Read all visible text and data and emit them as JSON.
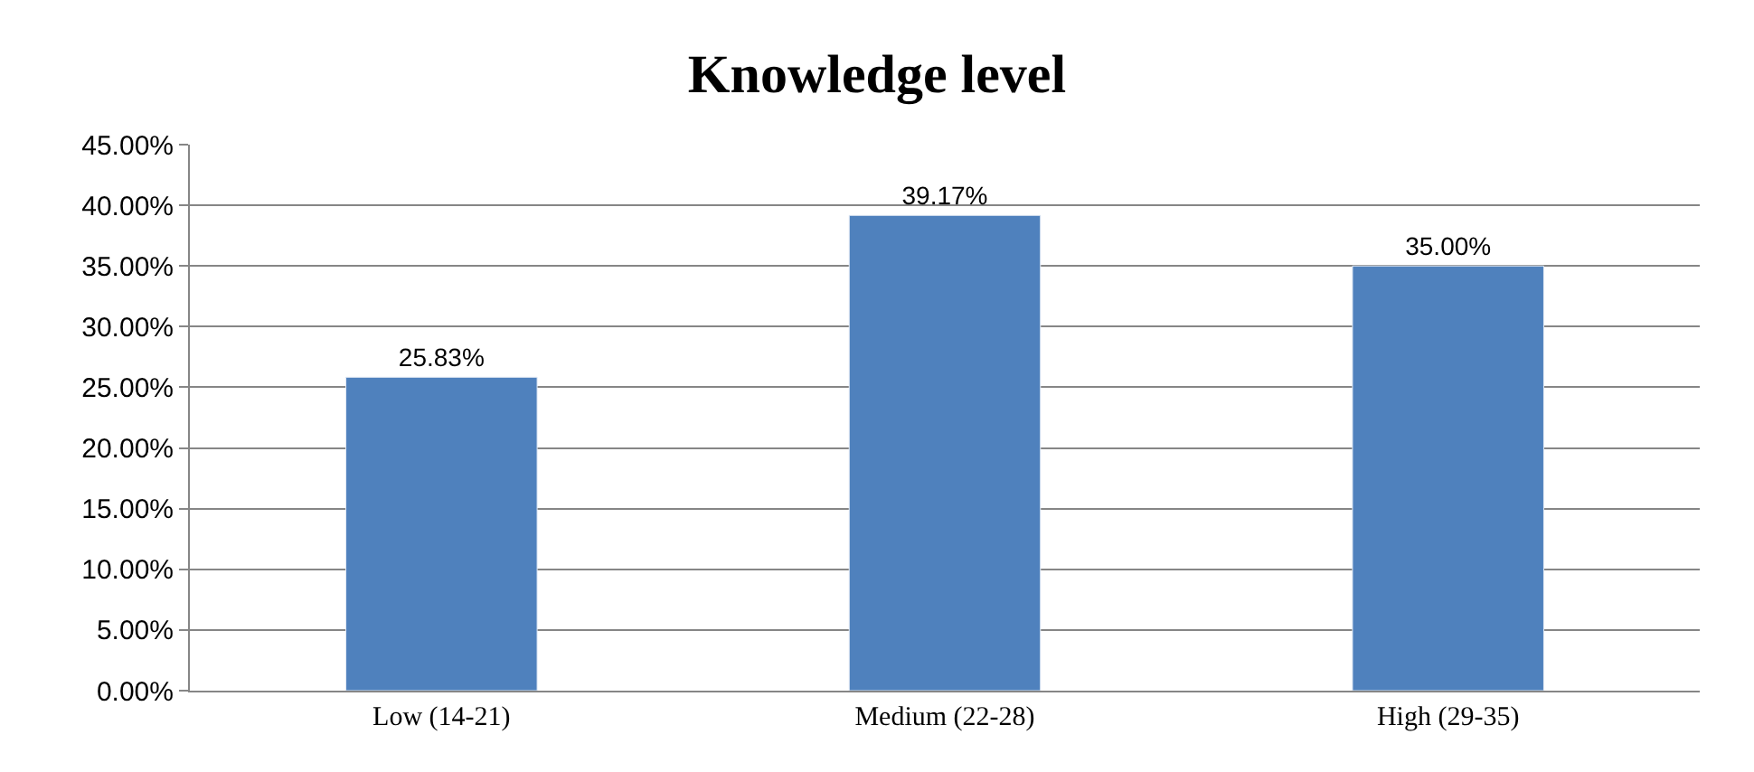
{
  "chart_data": {
    "type": "bar",
    "title": "Knowledge level",
    "categories": [
      "Low (14-21)",
      "Medium (22-28)",
      "High (29-35)"
    ],
    "values": [
      25.83,
      39.17,
      35.0
    ],
    "value_labels": [
      "25.83%",
      "39.17%",
      "35.00%"
    ],
    "color": "#4f81bd",
    "ylim": [
      0,
      45
    ],
    "yticks": [
      {
        "value": 0,
        "label": "0.00%"
      },
      {
        "value": 5,
        "label": "5.00%"
      },
      {
        "value": 10,
        "label": "10.00%"
      },
      {
        "value": 15,
        "label": "15.00%"
      },
      {
        "value": 20,
        "label": "20.00%"
      },
      {
        "value": 25,
        "label": "25.00%"
      },
      {
        "value": 30,
        "label": "30.00%"
      },
      {
        "value": 35,
        "label": "35.00%"
      },
      {
        "value": 40,
        "label": "40.00%"
      },
      {
        "value": 45,
        "label": "45.00%"
      }
    ],
    "grid": "y",
    "legend": false
  }
}
